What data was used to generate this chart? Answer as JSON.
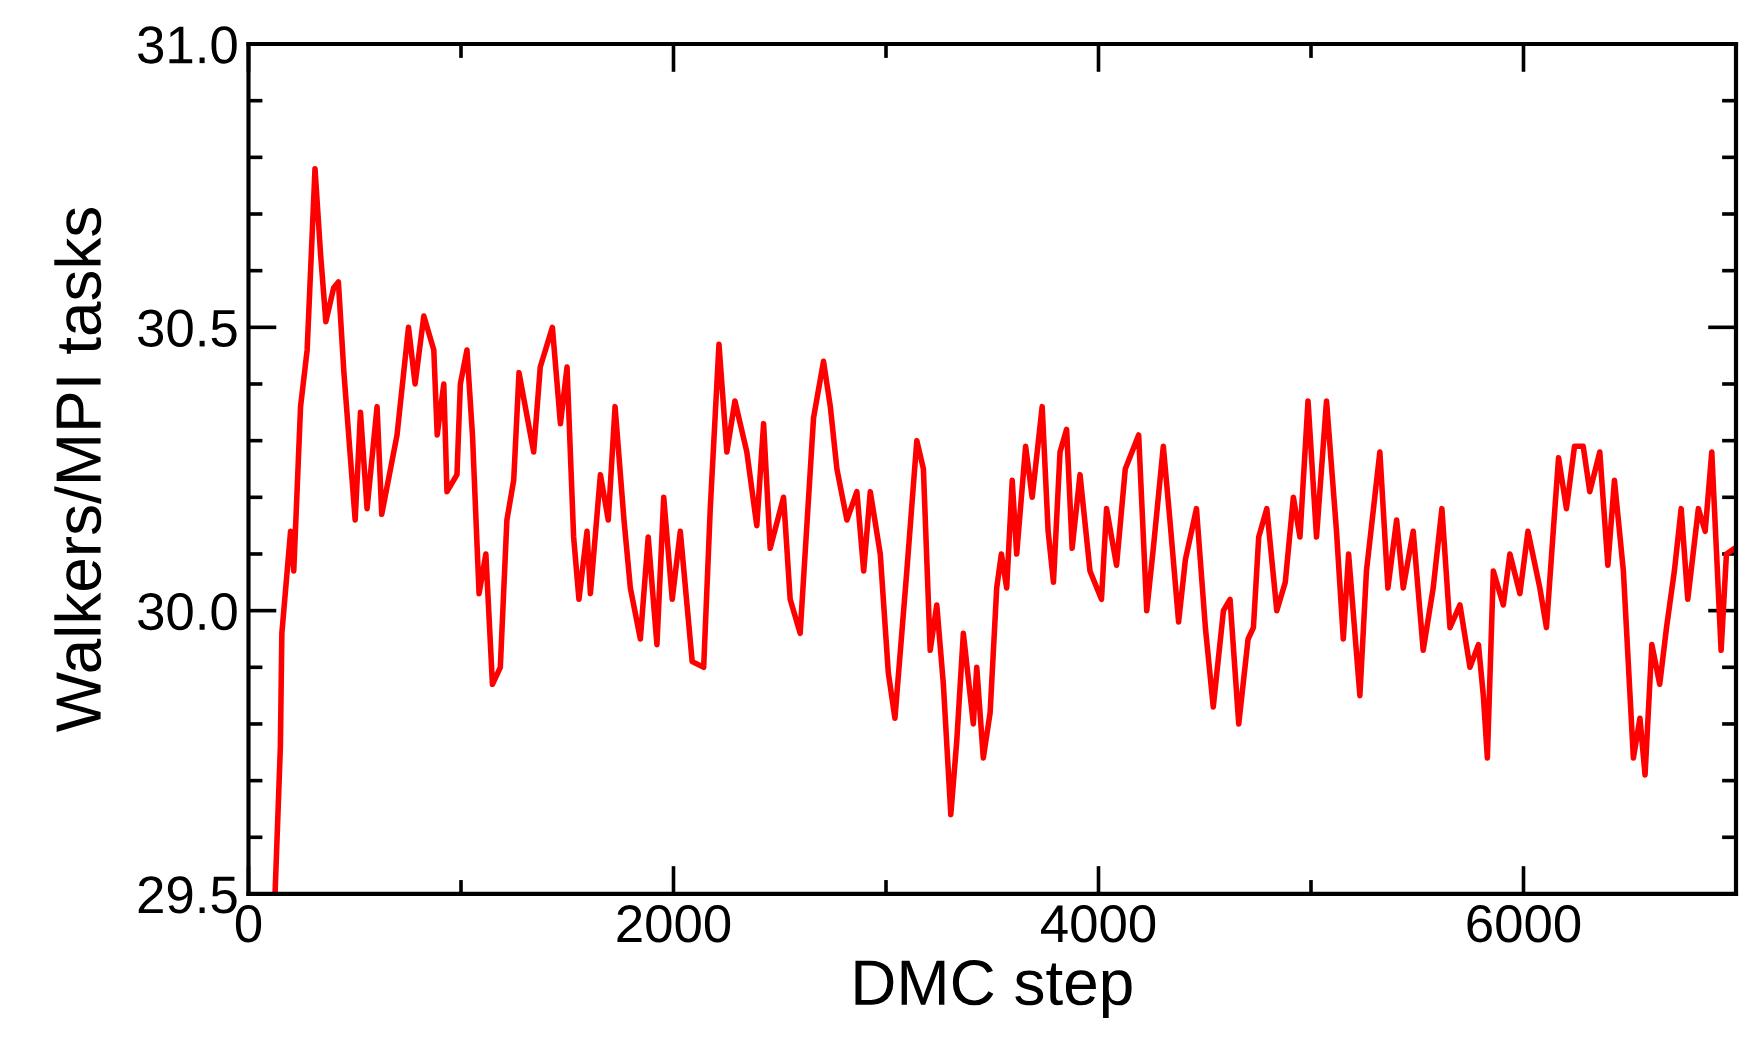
{
  "chart_data": {
    "type": "line",
    "xlabel": "DMC step",
    "ylabel": "Walkers/MPI tasks",
    "xlim": [
      0,
      7000
    ],
    "ylim": [
      29.5,
      31.0
    ],
    "xticks": [
      0,
      {
        "value": 1000,
        "label": null
      },
      2000,
      {
        "value": 3000,
        "label": null
      },
      4000,
      {
        "value": 5000,
        "label": null
      },
      6000,
      {
        "value": 7000,
        "label": null
      }
    ],
    "yticks": [
      {
        "value": 29.5,
        "label": "29.5"
      },
      {
        "value": 29.6,
        "label": null
      },
      {
        "value": 29.7,
        "label": null
      },
      {
        "value": 29.8,
        "label": null
      },
      {
        "value": 29.9,
        "label": null
      },
      {
        "value": 30.0,
        "label": "30.0"
      },
      {
        "value": 30.1,
        "label": null
      },
      {
        "value": 30.2,
        "label": null
      },
      {
        "value": 30.3,
        "label": null
      },
      {
        "value": 30.4,
        "label": null
      },
      {
        "value": 30.5,
        "label": "30.5"
      },
      {
        "value": 30.6,
        "label": null
      },
      {
        "value": 30.7,
        "label": null
      },
      {
        "value": 30.8,
        "label": null
      },
      {
        "value": 30.9,
        "label": null
      },
      {
        "value": 31.0,
        "label": "31.0"
      }
    ],
    "grid": false,
    "legend": false,
    "marker": "none",
    "line_style": "solid",
    "x": [
      125,
      150,
      157,
      198,
      213,
      245,
      276,
      313,
      339,
      364,
      401,
      423,
      449,
      502,
      527,
      558,
      605,
      627,
      699,
      753,
      784,
      825,
      872,
      888,
      919,
      934,
      981,
      997,
      1028,
      1054,
      1085,
      1117,
      1148,
      1185,
      1216,
      1248,
      1273,
      1342,
      1373,
      1430,
      1468,
      1499,
      1530,
      1555,
      1593,
      1609,
      1656,
      1693,
      1725,
      1767,
      1797,
      1844,
      1881,
      1922,
      1954,
      1994,
      2032,
      2088,
      2142,
      2173,
      2214,
      2251,
      2289,
      2345,
      2392,
      2424,
      2455,
      2518,
      2549,
      2596,
      2659,
      2706,
      2738,
      2769,
      2816,
      2863,
      2895,
      2926,
      2973,
      3011,
      3042,
      3098,
      3145,
      3176,
      3208,
      3239,
      3270,
      3305,
      3333,
      3364,
      3411,
      3427,
      3458,
      3490,
      3521,
      3543,
      3568,
      3594,
      3615,
      3657,
      3688,
      3735,
      3763,
      3788,
      3819,
      3850,
      3876,
      3913,
      3960,
      4014,
      4038,
      4085,
      4126,
      4189,
      4227,
      4258,
      4305,
      4336,
      4377,
      4409,
      4461,
      4503,
      4540,
      4588,
      4619,
      4660,
      4704,
      4729,
      4754,
      4792,
      4839,
      4879,
      4917,
      4948,
      4986,
      5026,
      5073,
      5120,
      5152,
      5177,
      5230,
      5261,
      5324,
      5362,
      5403,
      5434,
      5481,
      5528,
      5575,
      5616,
      5654,
      5701,
      5748,
      5788,
      5811,
      5830,
      5858,
      5905,
      5936,
      5983,
      6021,
      6077,
      6108,
      6140,
      6165,
      6202,
      6240,
      6281,
      6312,
      6359,
      6397,
      6428,
      6470,
      6517,
      6548,
      6572,
      6604,
      6641,
      6673,
      6710,
      6742,
      6773,
      6823,
      6855,
      6886,
      6930,
      6955,
      6993
    ],
    "series": [
      {
        "color": "#ff0000",
        "values": [
          29.5,
          29.76,
          29.96,
          30.14,
          30.07,
          30.36,
          30.46,
          30.78,
          30.63,
          30.51,
          30.57,
          30.58,
          30.42,
          30.16,
          30.35,
          30.18,
          30.36,
          30.17,
          30.31,
          30.5,
          30.4,
          30.52,
          30.46,
          30.31,
          30.4,
          30.21,
          30.24,
          30.4,
          30.46,
          30.31,
          30.03,
          30.1,
          29.87,
          29.9,
          30.16,
          30.23,
          30.42,
          30.28,
          30.43,
          30.5,
          30.33,
          30.43,
          30.13,
          30.02,
          30.14,
          30.03,
          30.24,
          30.16,
          30.36,
          30.16,
          30.04,
          29.95,
          30.13,
          29.94,
          30.2,
          30.02,
          30.14,
          29.91,
          29.9,
          30.18,
          30.47,
          30.28,
          30.37,
          30.28,
          30.15,
          30.33,
          30.11,
          30.2,
          30.02,
          29.96,
          30.34,
          30.44,
          30.36,
          30.25,
          30.16,
          30.21,
          30.07,
          30.21,
          30.1,
          29.89,
          29.81,
          30.07,
          30.3,
          30.25,
          29.93,
          30.01,
          29.87,
          29.64,
          29.77,
          29.96,
          29.8,
          29.9,
          29.74,
          29.82,
          30.04,
          30.1,
          30.04,
          30.23,
          30.1,
          30.29,
          30.2,
          30.36,
          30.14,
          30.05,
          30.28,
          30.32,
          30.11,
          30.24,
          30.07,
          30.02,
          30.18,
          30.08,
          30.25,
          30.31,
          30.0,
          30.11,
          30.29,
          30.16,
          29.98,
          30.09,
          30.18,
          29.97,
          29.83,
          30.0,
          30.02,
          29.8,
          29.95,
          29.97,
          30.13,
          30.18,
          30.0,
          30.05,
          30.2,
          30.13,
          30.37,
          30.13,
          30.37,
          30.14,
          29.95,
          30.1,
          29.85,
          30.07,
          30.28,
          30.04,
          30.16,
          30.04,
          30.14,
          29.93,
          30.04,
          30.18,
          29.97,
          30.01,
          29.9,
          29.94,
          29.85,
          29.74,
          30.07,
          30.01,
          30.1,
          30.03,
          30.14,
          30.04,
          29.97,
          30.14,
          30.27,
          30.18,
          30.29,
          30.29,
          30.21,
          30.28,
          30.08,
          30.23,
          30.07,
          29.74,
          29.81,
          29.71,
          29.94,
          29.87,
          29.97,
          30.07,
          30.18,
          30.02,
          30.18,
          30.14,
          30.28,
          29.93,
          30.1,
          30.11
        ]
      }
    ]
  }
}
